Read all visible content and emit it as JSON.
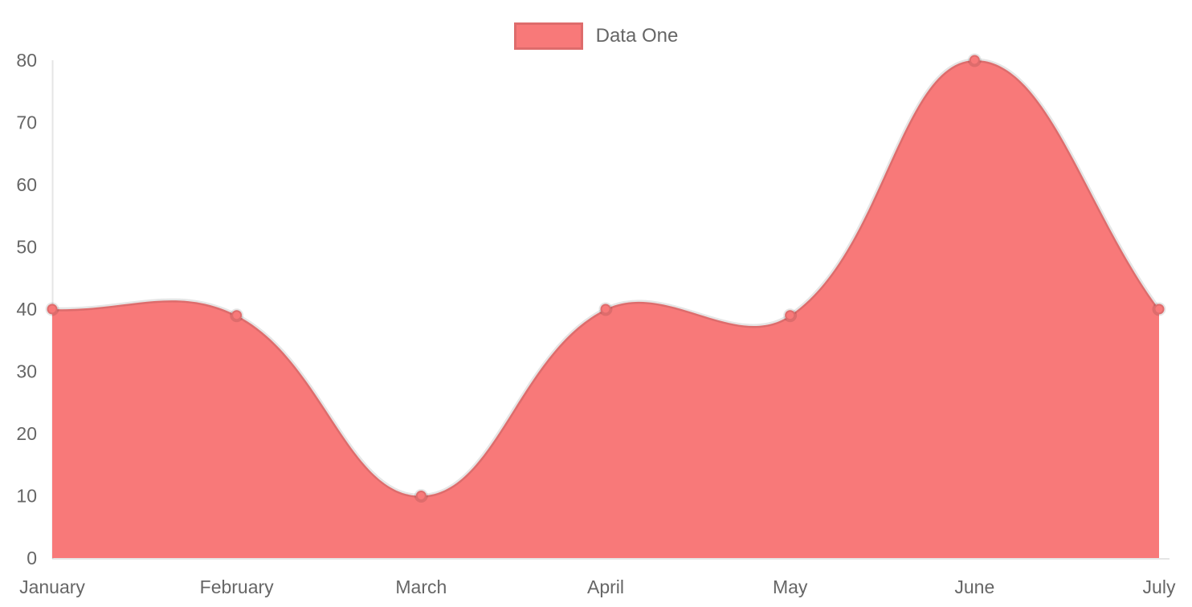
{
  "chart_data": {
    "type": "area",
    "title": "",
    "categories": [
      "January",
      "February",
      "March",
      "April",
      "May",
      "June",
      "July"
    ],
    "series": [
      {
        "name": "Data One",
        "values": [
          40,
          39,
          10,
          40,
          39,
          80,
          40
        ]
      }
    ],
    "xlabel": "",
    "ylabel": "",
    "ylim": [
      0,
      80
    ],
    "yticks": [
      0,
      10,
      20,
      30,
      40,
      50,
      60,
      70,
      80
    ],
    "grid": false,
    "legend_position": "top",
    "line_tension": 0.4,
    "colors": {
      "area_fill": "#f87979",
      "line_stroke": "rgba(0,0,0,0.1)",
      "point_fill": "#f87979",
      "point_stroke": "rgba(0,0,0,0.1)",
      "axis_line": "rgba(0,0,0,0.1)",
      "tick_text": "#666666"
    }
  }
}
